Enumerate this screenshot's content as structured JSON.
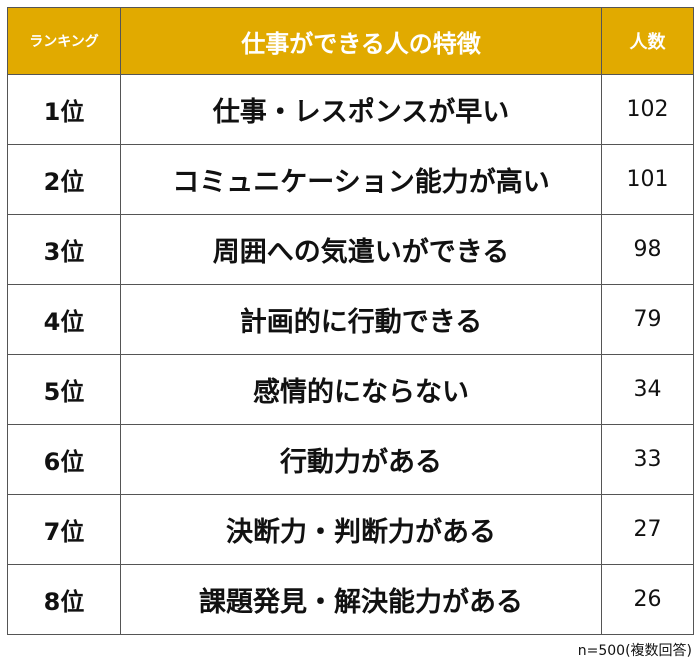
{
  "chart_data": {
    "type": "table",
    "columns": {
      "rank": "ランキング",
      "item": "仕事ができる人の特徴",
      "count": "人数"
    },
    "rows": [
      {
        "rank": "1位",
        "item": "仕事・レスポンスが早い",
        "count": 102
      },
      {
        "rank": "2位",
        "item": "コミュニケーション能力が高い",
        "count": 101
      },
      {
        "rank": "3位",
        "item": "周囲への気遣いができる",
        "count": 98
      },
      {
        "rank": "4位",
        "item": "計画的に行動できる",
        "count": 79
      },
      {
        "rank": "5位",
        "item": "感情的にならない",
        "count": 34
      },
      {
        "rank": "6位",
        "item": "行動力がある",
        "count": 33
      },
      {
        "rank": "7位",
        "item": "決断力・判断力がある",
        "count": 27
      },
      {
        "rank": "8位",
        "item": "課題発見・解決能力がある",
        "count": 26
      }
    ],
    "note": "n=500(複数回答)"
  },
  "colors": {
    "header_background": "#e1aa00",
    "header_text": "#ffffff",
    "border": "#555555",
    "body_text": "#111111"
  }
}
